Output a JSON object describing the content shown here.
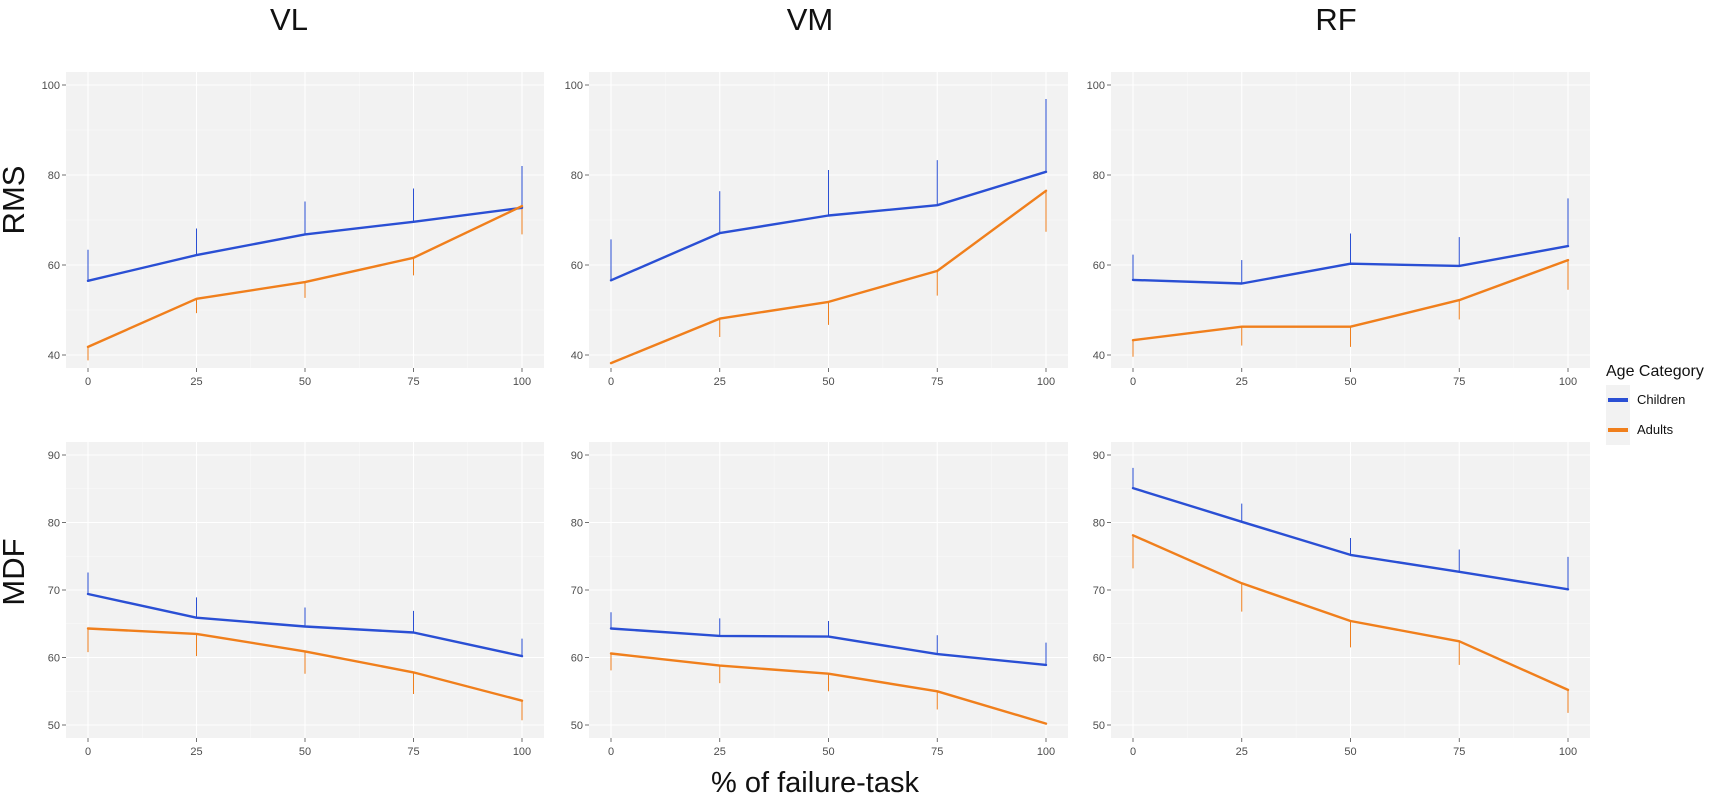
{
  "figure": {
    "column_titles": [
      "VL",
      "VM",
      "RF"
    ],
    "row_titles": [
      "RMS",
      "MDF"
    ],
    "x_axis_title": "% of failure-task",
    "legend": {
      "title": "Age Category",
      "entries": [
        {
          "label": "Children",
          "color": "#2a4fd4"
        },
        {
          "label": "Adults",
          "color": "#f07f1c"
        }
      ]
    }
  },
  "chart_data": [
    {
      "type": "line",
      "title": "VL",
      "ylabel": "RMS",
      "x": [
        0,
        25,
        50,
        75,
        100
      ],
      "xlim": [
        0,
        100
      ],
      "ylim": [
        40,
        100
      ],
      "yticks": [
        40,
        60,
        80,
        100
      ],
      "xticks": [
        0,
        25,
        50,
        75,
        100
      ],
      "grid": true,
      "series": [
        {
          "name": "Children",
          "color": "#2a4fd4",
          "values": [
            56.5,
            62.2,
            66.8,
            69.6,
            72.7
          ],
          "error_upper": [
            63.4,
            68.1,
            74.1,
            77.0,
            82.0
          ]
        },
        {
          "name": "Adults",
          "color": "#f07f1c",
          "values": [
            41.8,
            52.5,
            56.2,
            61.6,
            73.1
          ],
          "error_lower": [
            38.8,
            49.3,
            52.7,
            57.7,
            66.8
          ]
        }
      ]
    },
    {
      "type": "line",
      "title": "VM",
      "ylabel": "RMS",
      "x": [
        0,
        25,
        50,
        75,
        100
      ],
      "xlim": [
        0,
        100
      ],
      "ylim": [
        40,
        100
      ],
      "yticks": [
        40,
        60,
        80,
        100
      ],
      "xticks": [
        0,
        25,
        50,
        75,
        100
      ],
      "grid": true,
      "series": [
        {
          "name": "Children",
          "color": "#2a4fd4",
          "values": [
            56.6,
            67.1,
            71.0,
            73.3,
            80.7
          ],
          "error_upper": [
            65.7,
            76.4,
            81.1,
            83.3,
            96.9
          ]
        },
        {
          "name": "Adults",
          "color": "#f07f1c",
          "values": [
            38.2,
            48.1,
            51.8,
            58.7,
            76.5
          ],
          "error_lower": [
            38.2,
            44.0,
            46.7,
            53.2,
            67.4
          ]
        }
      ]
    },
    {
      "type": "line",
      "title": "RF",
      "ylabel": "RMS",
      "x": [
        0,
        25,
        50,
        75,
        100
      ],
      "xlim": [
        0,
        100
      ],
      "ylim": [
        40,
        100
      ],
      "yticks": [
        40,
        60,
        80,
        100
      ],
      "xticks": [
        0,
        25,
        50,
        75,
        100
      ],
      "grid": true,
      "series": [
        {
          "name": "Children",
          "color": "#2a4fd4",
          "values": [
            56.7,
            55.9,
            60.3,
            59.8,
            64.2
          ],
          "error_upper": [
            62.3,
            61.1,
            67.0,
            66.2,
            74.8
          ]
        },
        {
          "name": "Adults",
          "color": "#f07f1c",
          "values": [
            43.3,
            46.3,
            46.3,
            52.2,
            61.1
          ],
          "error_lower": [
            39.6,
            42.1,
            41.8,
            47.9,
            54.5
          ]
        }
      ]
    },
    {
      "type": "line",
      "title": "VL",
      "ylabel": "MDF",
      "x": [
        0,
        25,
        50,
        75,
        100
      ],
      "xlim": [
        0,
        100
      ],
      "ylim": [
        50,
        90
      ],
      "yticks": [
        50,
        60,
        70,
        80,
        90
      ],
      "xticks": [
        0,
        25,
        50,
        75,
        100
      ],
      "grid": true,
      "series": [
        {
          "name": "Children",
          "color": "#2a4fd4",
          "values": [
            69.4,
            65.9,
            64.6,
            63.7,
            60.2
          ],
          "error_upper": [
            72.6,
            68.9,
            67.4,
            66.9,
            62.8
          ]
        },
        {
          "name": "Adults",
          "color": "#f07f1c",
          "values": [
            64.3,
            63.5,
            60.9,
            57.8,
            53.6
          ],
          "error_lower": [
            60.8,
            60.2,
            57.6,
            54.6,
            50.7
          ]
        }
      ]
    },
    {
      "type": "line",
      "title": "VM",
      "ylabel": "MDF",
      "x": [
        0,
        25,
        50,
        75,
        100
      ],
      "xlim": [
        0,
        100
      ],
      "ylim": [
        50,
        90
      ],
      "yticks": [
        50,
        60,
        70,
        80,
        90
      ],
      "xticks": [
        0,
        25,
        50,
        75,
        100
      ],
      "grid": true,
      "series": [
        {
          "name": "Children",
          "color": "#2a4fd4",
          "values": [
            64.3,
            63.2,
            63.1,
            60.5,
            58.9
          ],
          "error_upper": [
            66.7,
            65.8,
            65.4,
            63.3,
            62.2
          ]
        },
        {
          "name": "Adults",
          "color": "#f07f1c",
          "values": [
            60.6,
            58.8,
            57.6,
            55.0,
            50.2
          ],
          "error_lower": [
            58.1,
            56.2,
            55.0,
            52.3,
            50.2
          ]
        }
      ]
    },
    {
      "type": "line",
      "title": "RF",
      "ylabel": "MDF",
      "x": [
        0,
        25,
        50,
        75,
        100
      ],
      "xlim": [
        0,
        100
      ],
      "ylim": [
        50,
        90
      ],
      "yticks": [
        50,
        60,
        70,
        80,
        90
      ],
      "xticks": [
        0,
        25,
        50,
        75,
        100
      ],
      "grid": true,
      "series": [
        {
          "name": "Children",
          "color": "#2a4fd4",
          "values": [
            85.1,
            80.1,
            75.2,
            72.7,
            70.1
          ],
          "error_upper": [
            88.1,
            82.8,
            77.7,
            76.0,
            74.9
          ]
        },
        {
          "name": "Adults",
          "color": "#f07f1c",
          "values": [
            78.1,
            71.0,
            65.4,
            62.4,
            55.2
          ],
          "error_lower": [
            73.2,
            66.8,
            61.5,
            58.9,
            51.8
          ]
        }
      ]
    }
  ]
}
